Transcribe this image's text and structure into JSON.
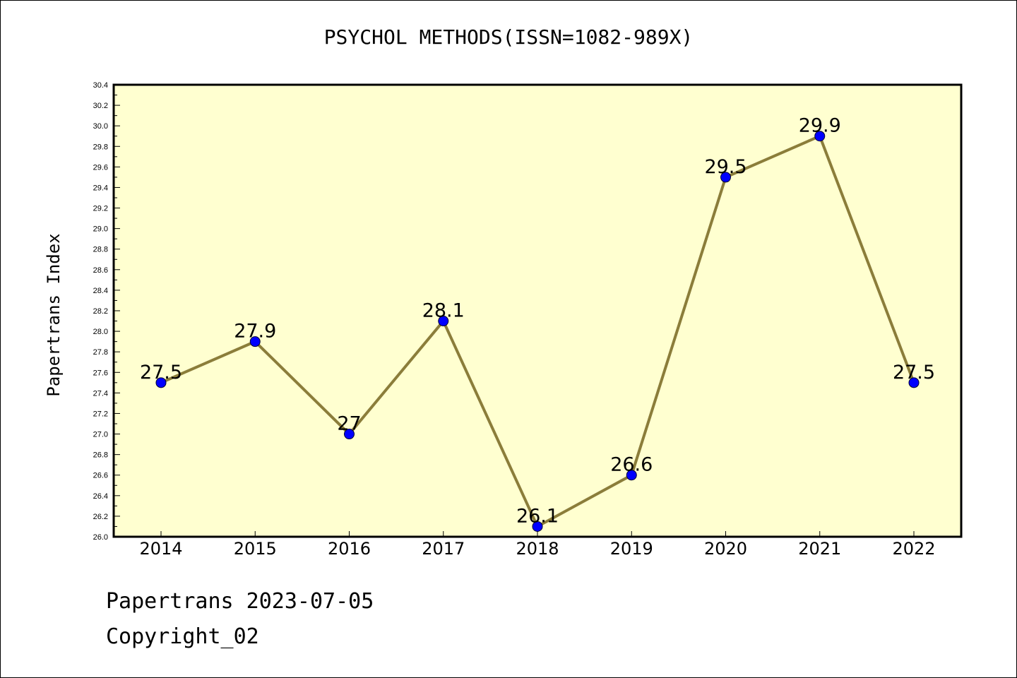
{
  "chart_data": {
    "type": "line",
    "title": "PSYCHOL METHODS(ISSN=1082-989X)",
    "ylabel": "Papertrans Index",
    "xlabel": "",
    "categories": [
      "2014",
      "2015",
      "2016",
      "2017",
      "2018",
      "2019",
      "2020",
      "2021",
      "2022"
    ],
    "series": [
      {
        "values": [
          27.5,
          27.9,
          27,
          28.1,
          26.1,
          26.6,
          29.5,
          29.9,
          27.5
        ],
        "labels": [
          "27.5",
          "27.9",
          "27",
          "28.1",
          "26.1",
          "26.6",
          "29.5",
          "29.9",
          "27.5"
        ],
        "line_color": "#8b7d3a",
        "marker_color": "#0000ff"
      }
    ],
    "ylim": [
      26.0,
      30.4
    ],
    "yticks": [
      "26.0",
      "26.2",
      "26.4",
      "26.6",
      "26.8",
      "27.0",
      "27.2",
      "27.4",
      "27.6",
      "27.8",
      "28.0",
      "28.2",
      "28.4",
      "28.6",
      "28.8",
      "29.0",
      "29.2",
      "29.4",
      "29.6",
      "29.8",
      "30.0",
      "30.2",
      "30.4"
    ],
    "plot_background": "#ffffd0",
    "grid": false
  },
  "footer": {
    "line1": "Papertrans 2023-07-05",
    "line2": "Copyright_02"
  }
}
